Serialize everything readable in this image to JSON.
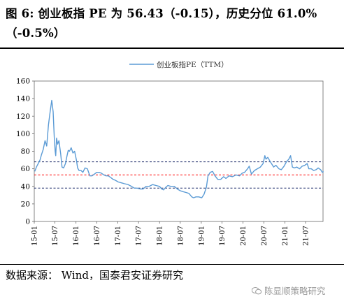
{
  "header": {
    "title": "图 6: 创业板指 PE 为 56.43（-0.15），历史分位 61.0%（-0.5%）"
  },
  "footer": {
    "source": "数据来源：  Wind，国泰君安证券研究",
    "watermark": "陈显顺策略研究"
  },
  "colors": {
    "series": "#5b9bd5",
    "mean_line": "#ff0000",
    "band_lines": "#1f2d6b"
  },
  "icons": {
    "watermark": "wechat-icon"
  },
  "chart_data": {
    "type": "line",
    "legend": {
      "entries": [
        "创业板指PE（TTM）"
      ],
      "position": "top-center"
    },
    "ylim": [
      0,
      160
    ],
    "yticks": [
      0,
      20,
      40,
      60,
      80,
      100,
      120,
      140,
      160
    ],
    "xlim": [
      "2015-01",
      "2021-12"
    ],
    "xticks": [
      "15-01",
      "15-07",
      "16-01",
      "16-07",
      "17-01",
      "17-07",
      "18-01",
      "18-07",
      "19-01",
      "19-07",
      "20-01",
      "20-07",
      "21-01",
      "21-07"
    ],
    "reference_lines": [
      {
        "label": "",
        "value": 68,
        "color": "#1f2d6b",
        "style": "dashed"
      },
      {
        "label": "",
        "value": 53,
        "color": "#ff0000",
        "style": "dashed"
      },
      {
        "label": "",
        "value": 38,
        "color": "#1f2d6b",
        "style": "dashed"
      }
    ],
    "grid": false,
    "series": [
      {
        "name": "创业板指PE（TTM）",
        "points": [
          [
            "2015-01-05",
            57
          ],
          [
            "2015-01-20",
            62
          ],
          [
            "2015-02-05",
            66
          ],
          [
            "2015-02-20",
            70
          ],
          [
            "2015-03-05",
            76
          ],
          [
            "2015-03-20",
            82
          ],
          [
            "2015-04-05",
            92
          ],
          [
            "2015-04-20",
            86
          ],
          [
            "2015-05-05",
            110
          ],
          [
            "2015-05-20",
            125
          ],
          [
            "2015-06-03",
            138
          ],
          [
            "2015-06-15",
            125
          ],
          [
            "2015-06-25",
            96
          ],
          [
            "2015-07-03",
            80
          ],
          [
            "2015-07-08",
            75
          ],
          [
            "2015-07-15",
            95
          ],
          [
            "2015-07-25",
            88
          ],
          [
            "2015-08-05",
            92
          ],
          [
            "2015-08-20",
            77
          ],
          [
            "2015-09-01",
            62
          ],
          [
            "2015-09-15",
            61
          ],
          [
            "2015-10-01",
            66
          ],
          [
            "2015-10-15",
            75
          ],
          [
            "2015-10-25",
            81
          ],
          [
            "2015-11-05",
            80
          ],
          [
            "2015-11-20",
            84
          ],
          [
            "2015-12-05",
            78
          ],
          [
            "2015-12-20",
            80
          ],
          [
            "2016-01-05",
            70
          ],
          [
            "2016-01-15",
            61
          ],
          [
            "2016-01-28",
            58
          ],
          [
            "2016-02-15",
            58
          ],
          [
            "2016-03-01",
            56
          ],
          [
            "2016-03-20",
            61
          ],
          [
            "2016-04-10",
            60
          ],
          [
            "2016-05-01",
            52
          ],
          [
            "2016-05-20",
            52
          ],
          [
            "2016-06-10",
            54
          ],
          [
            "2016-07-01",
            56
          ],
          [
            "2016-07-20",
            56
          ],
          [
            "2016-08-10",
            55
          ],
          [
            "2016-09-01",
            53
          ],
          [
            "2016-09-20",
            52
          ],
          [
            "2016-10-10",
            52
          ],
          [
            "2016-11-01",
            50
          ],
          [
            "2016-11-20",
            48
          ],
          [
            "2016-12-10",
            47
          ],
          [
            "2017-01-05",
            45
          ],
          [
            "2017-02-01",
            44
          ],
          [
            "2017-03-01",
            43
          ],
          [
            "2017-04-01",
            42
          ],
          [
            "2017-05-01",
            40
          ],
          [
            "2017-05-25",
            38
          ],
          [
            "2017-06-20",
            38
          ],
          [
            "2017-07-15",
            37
          ],
          [
            "2017-08-10",
            37
          ],
          [
            "2017-09-05",
            40
          ],
          [
            "2017-10-01",
            40
          ],
          [
            "2017-11-01",
            42
          ],
          [
            "2017-12-01",
            41
          ],
          [
            "2018-01-01",
            40
          ],
          [
            "2018-01-20",
            37
          ],
          [
            "2018-02-05",
            36
          ],
          [
            "2018-02-25",
            39
          ],
          [
            "2018-03-15",
            41
          ],
          [
            "2018-04-10",
            40
          ],
          [
            "2018-05-10",
            40
          ],
          [
            "2018-06-05",
            37
          ],
          [
            "2018-07-01",
            35
          ],
          [
            "2018-07-25",
            34
          ],
          [
            "2018-08-20",
            33
          ],
          [
            "2018-09-15",
            32
          ],
          [
            "2018-10-10",
            28
          ],
          [
            "2018-10-25",
            27
          ],
          [
            "2018-11-15",
            28
          ],
          [
            "2018-12-10",
            28
          ],
          [
            "2019-01-05",
            27
          ],
          [
            "2019-01-25",
            31
          ],
          [
            "2019-02-15",
            39
          ],
          [
            "2019-03-01",
            52
          ],
          [
            "2019-03-20",
            56
          ],
          [
            "2019-04-10",
            57
          ],
          [
            "2019-05-01",
            52
          ],
          [
            "2019-05-25",
            48
          ],
          [
            "2019-06-20",
            48
          ],
          [
            "2019-07-15",
            51
          ],
          [
            "2019-08-05",
            49
          ],
          [
            "2019-09-01",
            52
          ],
          [
            "2019-10-01",
            51
          ],
          [
            "2019-11-01",
            53
          ],
          [
            "2019-12-01",
            52
          ],
          [
            "2019-12-25",
            55
          ],
          [
            "2020-01-15",
            56
          ],
          [
            "2020-02-10",
            60
          ],
          [
            "2020-02-25",
            63
          ],
          [
            "2020-03-15",
            54
          ],
          [
            "2020-04-10",
            58
          ],
          [
            "2020-05-05",
            60
          ],
          [
            "2020-06-01",
            62
          ],
          [
            "2020-06-25",
            66
          ],
          [
            "2020-07-10",
            75
          ],
          [
            "2020-07-20",
            71
          ],
          [
            "2020-08-05",
            73
          ],
          [
            "2020-09-01",
            67
          ],
          [
            "2020-09-25",
            62
          ],
          [
            "2020-10-15",
            64
          ],
          [
            "2020-11-10",
            60
          ],
          [
            "2020-12-01",
            59
          ],
          [
            "2020-12-25",
            63
          ],
          [
            "2021-01-15",
            68
          ],
          [
            "2021-02-05",
            71
          ],
          [
            "2021-02-20",
            75
          ],
          [
            "2021-03-08",
            62
          ],
          [
            "2021-03-25",
            61
          ],
          [
            "2021-04-15",
            62
          ],
          [
            "2021-05-10",
            60
          ],
          [
            "2021-06-01",
            63
          ],
          [
            "2021-06-25",
            64
          ],
          [
            "2021-07-15",
            66
          ],
          [
            "2021-07-30",
            60
          ],
          [
            "2021-08-20",
            60
          ],
          [
            "2021-09-10",
            58
          ],
          [
            "2021-10-01",
            59
          ],
          [
            "2021-10-20",
            61
          ],
          [
            "2021-11-10",
            59
          ],
          [
            "2021-11-25",
            56
          ],
          [
            "2021-12-05",
            57
          ]
        ]
      }
    ]
  }
}
